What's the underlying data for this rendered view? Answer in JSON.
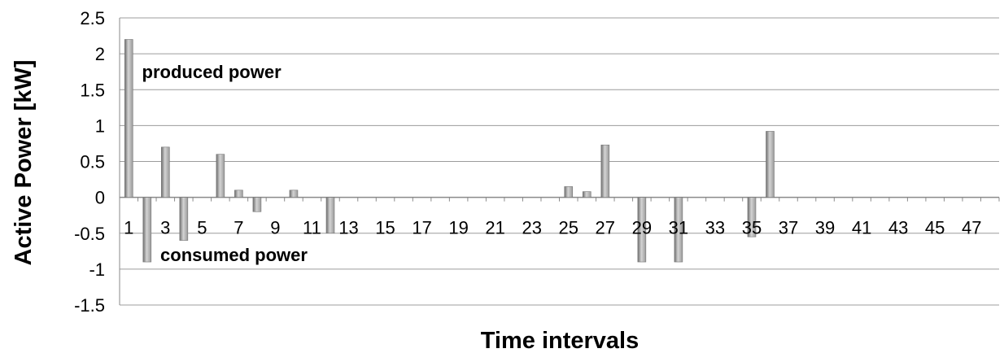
{
  "chart_data": {
    "type": "bar",
    "title": "",
    "xlabel": "Time intervals",
    "ylabel": "Active Power [kW]",
    "ylim": [
      -1.5,
      2.5
    ],
    "yticks": [
      -1.5,
      -1,
      -0.5,
      0,
      0.5,
      1,
      1.5,
      2,
      2.5
    ],
    "ytick_labels": [
      "-1.5",
      "-1",
      "-0.5",
      "0",
      "0.5",
      "1",
      "1.5",
      "2",
      "2.5"
    ],
    "categories": [
      "1",
      "2",
      "3",
      "4",
      "5",
      "6",
      "7",
      "8",
      "9",
      "10",
      "11",
      "12",
      "13",
      "14",
      "15",
      "16",
      "17",
      "18",
      "19",
      "20",
      "21",
      "22",
      "23",
      "24",
      "25",
      "26",
      "27",
      "28",
      "29",
      "30",
      "31",
      "32",
      "33",
      "34",
      "35",
      "36",
      "37",
      "38",
      "39",
      "40",
      "41",
      "42",
      "43",
      "44",
      "45",
      "46",
      "47",
      "48"
    ],
    "xtick_labels": [
      "1",
      "3",
      "5",
      "7",
      "9",
      "11",
      "13",
      "15",
      "17",
      "19",
      "21",
      "23",
      "25",
      "27",
      "29",
      "31",
      "33",
      "35",
      "37",
      "39",
      "41",
      "43",
      "45",
      "47"
    ],
    "values": [
      2.2,
      -0.9,
      0.7,
      -0.6,
      0,
      0.6,
      0.1,
      -0.2,
      0,
      0.1,
      0,
      -0.5,
      0,
      0,
      0,
      0,
      0,
      0,
      0,
      0,
      0,
      0,
      0,
      0,
      0.15,
      0.08,
      0.73,
      0,
      -0.9,
      0,
      -0.9,
      0,
      0,
      0,
      -0.55,
      0.92,
      0,
      0,
      0,
      0,
      0,
      0,
      0,
      0,
      0,
      0,
      0,
      0
    ],
    "grid": true,
    "bar_color": "#9a9a9a",
    "annotations": [
      {
        "text": "produced power",
        "x": 2,
        "y": 1.75
      },
      {
        "text": "consumed power",
        "x": 3,
        "y": -0.8
      }
    ]
  }
}
